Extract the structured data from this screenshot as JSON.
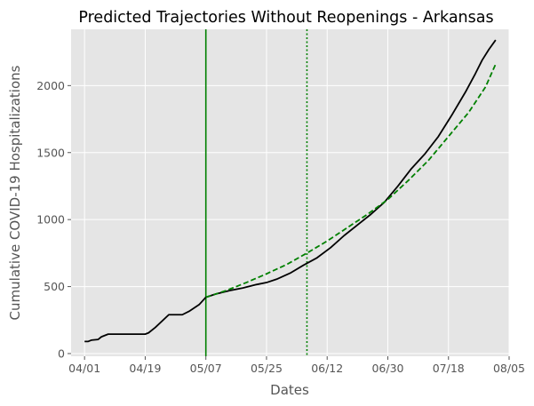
{
  "chart_data": {
    "type": "line",
    "title": "Predicted Trajectories Without Reopenings - Arkansas",
    "xlabel": "Dates",
    "ylabel": "Cumulative COVID-19 Hospitalizations",
    "x_axis": {
      "start": "2020-03-28",
      "end": "2020-08-05",
      "ticks": [
        {
          "date": "2020-04-01",
          "label": "04/01"
        },
        {
          "date": "2020-04-19",
          "label": "04/19"
        },
        {
          "date": "2020-05-07",
          "label": "05/07"
        },
        {
          "date": "2020-05-25",
          "label": "05/25"
        },
        {
          "date": "2020-06-12",
          "label": "06/12"
        },
        {
          "date": "2020-06-30",
          "label": "06/30"
        },
        {
          "date": "2020-07-18",
          "label": "07/18"
        },
        {
          "date": "2020-08-05",
          "label": "08/05"
        }
      ]
    },
    "y_axis": {
      "min": -20,
      "max": 2420,
      "ticks": [
        0,
        500,
        1000,
        1500,
        2000
      ]
    },
    "grid": true,
    "background": "#e5e5e5",
    "series": [
      {
        "style": "solid",
        "color": "#000000",
        "points": [
          [
            "2020-04-01",
            90
          ],
          [
            "2020-04-02",
            90
          ],
          [
            "2020-04-03",
            100
          ],
          [
            "2020-04-05",
            105
          ],
          [
            "2020-04-06",
            125
          ],
          [
            "2020-04-08",
            145
          ],
          [
            "2020-04-19",
            145
          ],
          [
            "2020-04-20",
            155
          ],
          [
            "2020-04-22",
            195
          ],
          [
            "2020-04-26",
            290
          ],
          [
            "2020-04-30",
            290
          ],
          [
            "2020-05-02",
            315
          ],
          [
            "2020-05-05",
            365
          ],
          [
            "2020-05-07",
            420
          ],
          [
            "2020-05-10",
            445
          ],
          [
            "2020-05-14",
            470
          ],
          [
            "2020-05-18",
            490
          ],
          [
            "2020-05-22",
            515
          ],
          [
            "2020-05-25",
            530
          ],
          [
            "2020-05-28",
            555
          ],
          [
            "2020-06-01",
            600
          ],
          [
            "2020-06-05",
            660
          ],
          [
            "2020-06-09",
            715
          ],
          [
            "2020-06-13",
            790
          ],
          [
            "2020-06-17",
            880
          ],
          [
            "2020-06-21",
            960
          ],
          [
            "2020-06-25",
            1040
          ],
          [
            "2020-06-29",
            1130
          ],
          [
            "2020-07-03",
            1250
          ],
          [
            "2020-07-07",
            1380
          ],
          [
            "2020-07-11",
            1490
          ],
          [
            "2020-07-15",
            1620
          ],
          [
            "2020-07-19",
            1780
          ],
          [
            "2020-07-23",
            1950
          ],
          [
            "2020-07-26",
            2090
          ],
          [
            "2020-07-28",
            2190
          ],
          [
            "2020-07-30",
            2270
          ],
          [
            "2020-08-01",
            2340
          ]
        ]
      },
      {
        "style": "dashed",
        "color": "#008000",
        "points": [
          [
            "2020-05-07",
            420
          ],
          [
            "2020-05-13",
            470
          ],
          [
            "2020-05-19",
            530
          ],
          [
            "2020-05-25",
            595
          ],
          [
            "2020-05-31",
            665
          ],
          [
            "2020-06-06",
            750
          ],
          [
            "2020-06-12",
            840
          ],
          [
            "2020-06-18",
            940
          ],
          [
            "2020-06-24",
            1040
          ],
          [
            "2020-06-30",
            1150
          ],
          [
            "2020-07-06",
            1290
          ],
          [
            "2020-07-12",
            1440
          ],
          [
            "2020-07-18",
            1620
          ],
          [
            "2020-07-24",
            1800
          ],
          [
            "2020-07-29",
            1990
          ],
          [
            "2020-08-01",
            2160
          ]
        ]
      }
    ],
    "vertical_lines": [
      {
        "date": "2020-05-07",
        "style": "solid",
        "color": "#008000"
      },
      {
        "date": "2020-06-06",
        "style": "dotted",
        "color": "#008000"
      }
    ]
  }
}
